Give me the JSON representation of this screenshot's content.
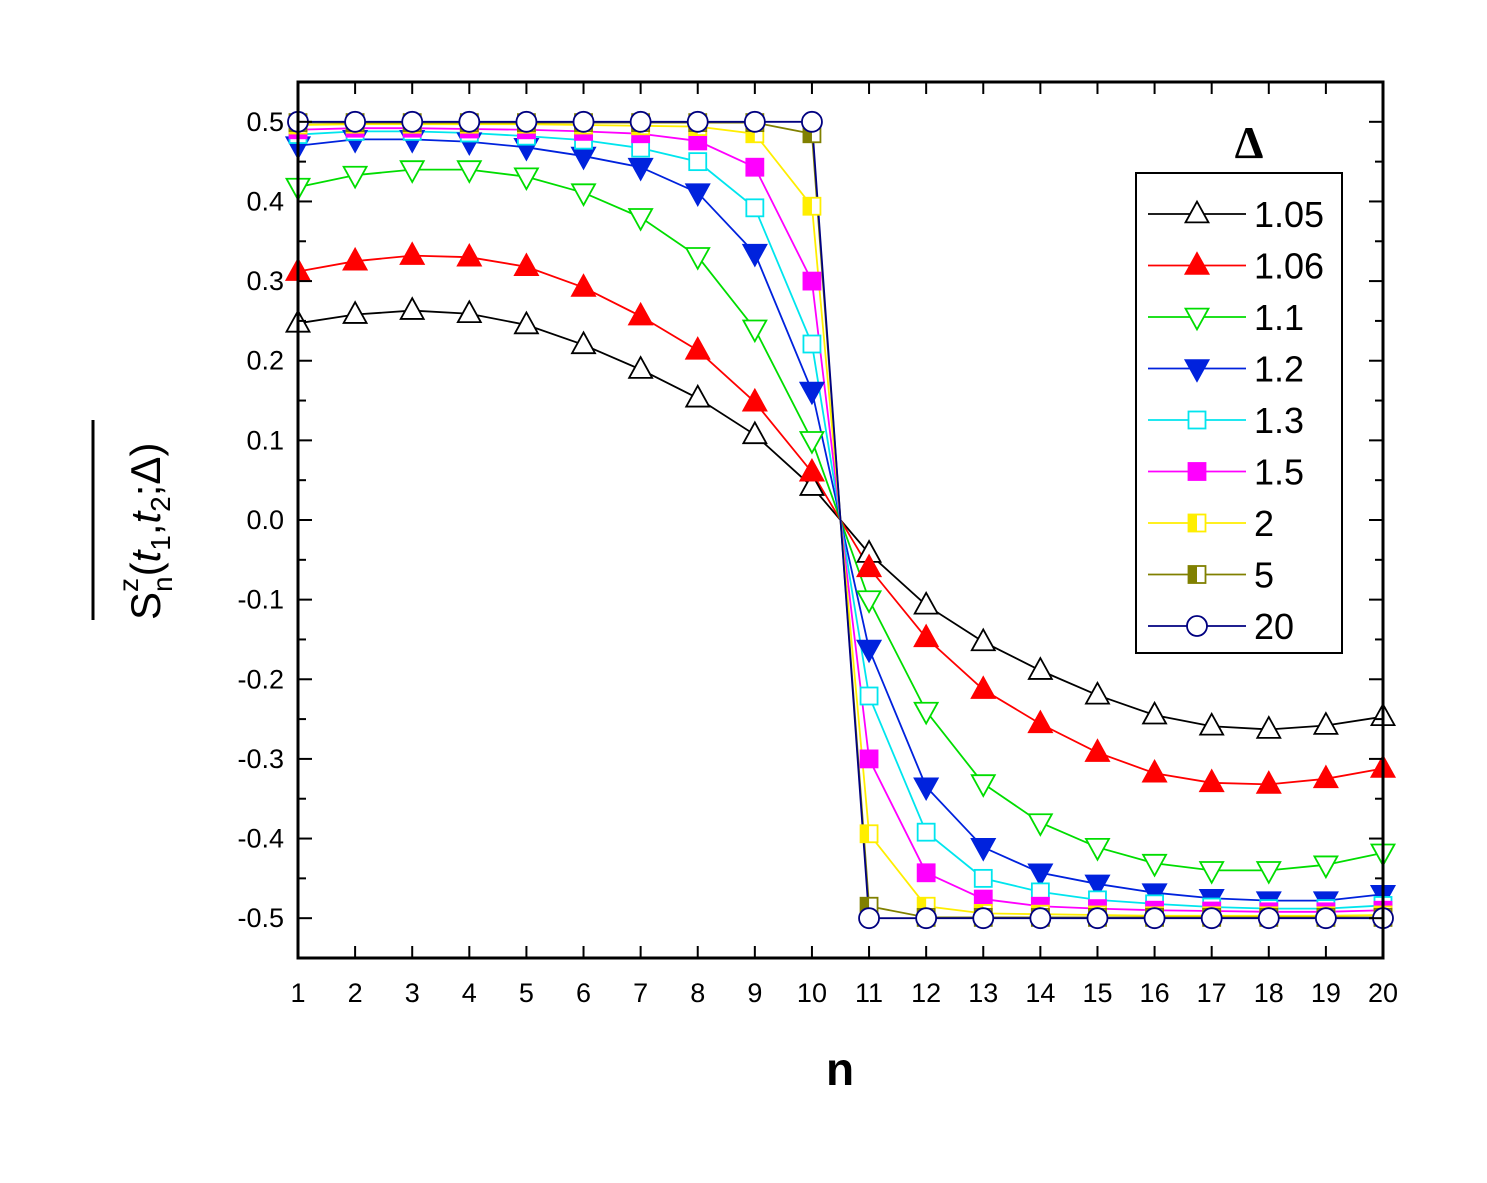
{
  "chart_data": {
    "type": "line",
    "xlabel": "n",
    "ylabel": {
      "main": "S",
      "sup": "z",
      "sub": "n",
      "args_a": "(",
      "t1": "t",
      "t1_sub": "1",
      "comma": ",",
      "t2": "t",
      "t2_sub": "2",
      "tail": ";Δ)"
    },
    "legend_title": "Δ",
    "legend_position": "top-right",
    "xlim": [
      1,
      20
    ],
    "ylim": [
      -0.55,
      0.55
    ],
    "x_ticks": [
      "1",
      "2",
      "3",
      "4",
      "5",
      "6",
      "7",
      "8",
      "9",
      "10",
      "11",
      "12",
      "13",
      "14",
      "15",
      "16",
      "17",
      "18",
      "19",
      "20"
    ],
    "y_ticks": [
      "0.5",
      "0.4",
      "0.3",
      "0.2",
      "0.1",
      "0.0",
      "-0.1",
      "-0.2",
      "-0.3",
      "-0.4",
      "-0.5"
    ],
    "y_tick_values": [
      0.5,
      0.4,
      0.3,
      0.2,
      0.1,
      0.0,
      -0.1,
      -0.2,
      -0.3,
      -0.4,
      -0.5
    ],
    "x": [
      1,
      2,
      3,
      4,
      5,
      6,
      7,
      8,
      9,
      10,
      11,
      12,
      13,
      14,
      15,
      16,
      17,
      18,
      19,
      20
    ],
    "series": [
      {
        "name": "1.05",
        "color": "#000000",
        "marker": "triangle-up",
        "fill": "none",
        "values": [
          0.247,
          0.258,
          0.263,
          0.259,
          0.245,
          0.22,
          0.189,
          0.153,
          0.107,
          0.042,
          -0.042,
          -0.107,
          -0.153,
          -0.189,
          -0.22,
          -0.245,
          -0.259,
          -0.263,
          -0.258,
          -0.247
        ]
      },
      {
        "name": "1.06",
        "color": "#ff0000",
        "marker": "triangle-up",
        "fill": "full",
        "values": [
          0.312,
          0.325,
          0.332,
          0.33,
          0.318,
          0.292,
          0.256,
          0.213,
          0.148,
          0.06,
          -0.06,
          -0.148,
          -0.213,
          -0.256,
          -0.292,
          -0.318,
          -0.33,
          -0.332,
          -0.325,
          -0.312
        ]
      },
      {
        "name": "1.1",
        "color": "#00dd00",
        "marker": "triangle-down",
        "fill": "none",
        "values": [
          0.418,
          0.433,
          0.44,
          0.44,
          0.431,
          0.411,
          0.38,
          0.331,
          0.24,
          0.1,
          -0.1,
          -0.24,
          -0.331,
          -0.38,
          -0.411,
          -0.431,
          -0.44,
          -0.44,
          -0.433,
          -0.418
        ]
      },
      {
        "name": "1.2",
        "color": "#0022dd",
        "marker": "triangle-down",
        "fill": "full",
        "values": [
          0.47,
          0.478,
          0.478,
          0.475,
          0.468,
          0.457,
          0.443,
          0.411,
          0.335,
          0.162,
          -0.162,
          -0.335,
          -0.411,
          -0.443,
          -0.457,
          -0.468,
          -0.475,
          -0.478,
          -0.478,
          -0.47
        ]
      },
      {
        "name": "1.3",
        "color": "#00e5ee",
        "marker": "square",
        "fill": "none",
        "values": [
          0.484,
          0.488,
          0.488,
          0.486,
          0.482,
          0.477,
          0.467,
          0.45,
          0.392,
          0.221,
          -0.221,
          -0.392,
          -0.45,
          -0.467,
          -0.477,
          -0.482,
          -0.486,
          -0.488,
          -0.488,
          -0.484
        ]
      },
      {
        "name": "1.5",
        "color": "#ff00ff",
        "marker": "square",
        "fill": "full",
        "values": [
          0.49,
          0.492,
          0.492,
          0.491,
          0.49,
          0.488,
          0.485,
          0.476,
          0.443,
          0.3,
          -0.3,
          -0.443,
          -0.476,
          -0.485,
          -0.488,
          -0.49,
          -0.491,
          -0.492,
          -0.492,
          -0.49
        ]
      },
      {
        "name": "2",
        "color": "#ffee00",
        "marker": "square",
        "fill": "half",
        "values": [
          0.496,
          0.497,
          0.497,
          0.497,
          0.497,
          0.496,
          0.495,
          0.494,
          0.485,
          0.394,
          -0.394,
          -0.485,
          -0.494,
          -0.495,
          -0.496,
          -0.497,
          -0.497,
          -0.497,
          -0.497,
          -0.496
        ]
      },
      {
        "name": "5",
        "color": "#808000",
        "marker": "square",
        "fill": "half",
        "values": [
          0.499,
          0.499,
          0.499,
          0.499,
          0.499,
          0.499,
          0.499,
          0.499,
          0.499,
          0.485,
          -0.485,
          -0.499,
          -0.499,
          -0.499,
          -0.499,
          -0.499,
          -0.499,
          -0.499,
          -0.499,
          -0.499
        ]
      },
      {
        "name": "20",
        "color": "#000080",
        "marker": "circle",
        "fill": "none",
        "values": [
          0.5,
          0.5,
          0.5,
          0.5,
          0.5,
          0.5,
          0.5,
          0.5,
          0.5,
          0.5,
          -0.5,
          -0.5,
          -0.5,
          -0.5,
          -0.5,
          -0.5,
          -0.5,
          -0.5,
          -0.5,
          -0.5
        ]
      }
    ]
  }
}
